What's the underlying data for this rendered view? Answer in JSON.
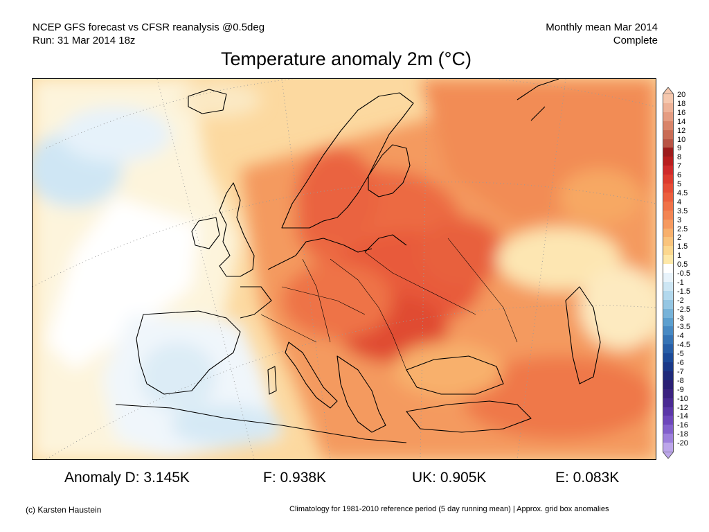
{
  "header": {
    "left_line1": "NCEP GFS forecast vs CFSR reanalysis @0.5deg",
    "left_line2": "Run: 31 Mar 2014 18z",
    "right_line1": "Monthly mean Mar 2014",
    "right_line2": "Complete"
  },
  "title": "Temperature anomaly 2m (°C)",
  "stats": {
    "d": "Anomaly D: 3.145K",
    "f": "F: 0.938K",
    "uk": "UK: 0.905K",
    "e": "E: 0.083K"
  },
  "footer": {
    "left": "(c) Karsten Haustein",
    "right": "Climatology for 1981-2010 reference period (5 day running mean) | Approx. grid box anomalies"
  },
  "colorbar": {
    "labels": [
      "20",
      "18",
      "16",
      "14",
      "12",
      "10",
      "9",
      "8",
      "7",
      "6",
      "5",
      "4.5",
      "4",
      "3.5",
      "3",
      "2.5",
      "2",
      "1.5",
      "1",
      "0.5",
      "-0.5",
      "-1",
      "-1.5",
      "-2",
      "-2.5",
      "-3",
      "-3.5",
      "-4",
      "-4.5",
      "-5",
      "-6",
      "-7",
      "-8",
      "-9",
      "-10",
      "-12",
      "-14",
      "-16",
      "-18",
      "-20"
    ],
    "colors": [
      "#f6c8ae",
      "#eeb398",
      "#e59d82",
      "#d9856a",
      "#c96c55",
      "#b85445",
      "#9c1c1c",
      "#b81e1e",
      "#cf2a2a",
      "#dd3b2e",
      "#e64d36",
      "#ec5f3e",
      "#f07248",
      "#f38553",
      "#f69a5f",
      "#f8b06c",
      "#fac47c",
      "#fcd78e",
      "#fee8a8",
      "#ffffff",
      "#e8f3fb",
      "#cde6f4",
      "#b2d8ed",
      "#94c6e3",
      "#77b3d9",
      "#5c9fcf",
      "#4789c3",
      "#3573b5",
      "#275ea7",
      "#1c4a98",
      "#1a3888",
      "#1f2a7a",
      "#2a1f74",
      "#3b2280",
      "#4a2a93",
      "#5b37a8",
      "#6d47bb",
      "#8260cc",
      "#9d80dc",
      "#bca6ea"
    ]
  }
}
